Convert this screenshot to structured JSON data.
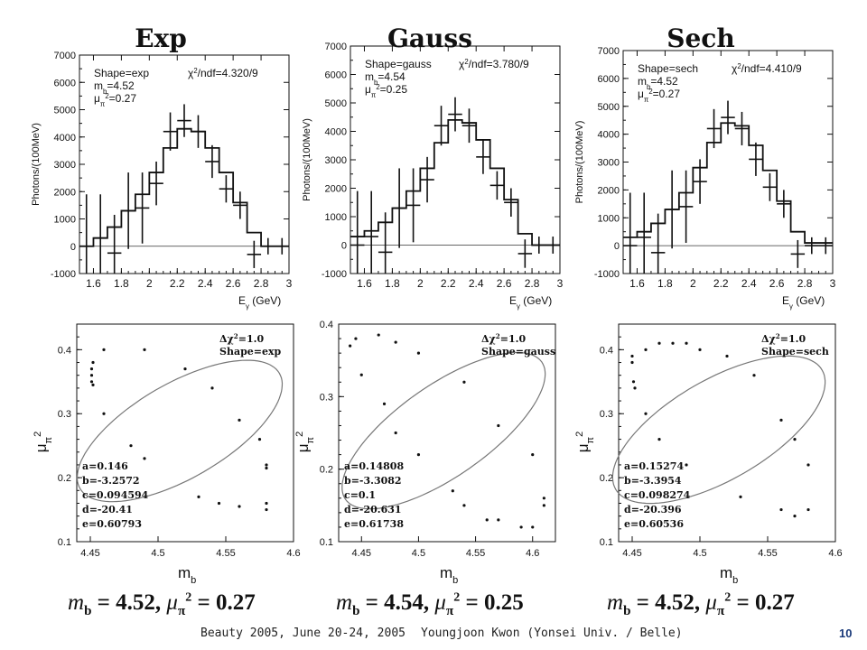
{
  "titles": [
    "Exp",
    "Gauss",
    "Sech"
  ],
  "summaries": [
    {
      "mb": "4.52",
      "mu2": "0.27"
    },
    {
      "mb": "4.54",
      "mu2": "0.25"
    },
    {
      "mb": "4.52",
      "mu2": "0.27"
    }
  ],
  "summary_labels": {
    "mb": "m",
    "mb_sub": "b",
    "mu": "μ",
    "mu_sub": "π",
    "mu_sup": "2"
  },
  "footer": {
    "conference": "Beauty 2005, June 20-24, 2005",
    "author": "Youngjoon Kwon (Yonsei Univ. / Belle)",
    "page": "10"
  },
  "chart_data": [
    {
      "type": "histogram",
      "panel": "Exp",
      "xlabel": "E_γ (GeV)",
      "ylabel": "Photons/(100MeV)",
      "xlim": [
        1.5,
        3.0
      ],
      "ylim": [
        -1000,
        7000
      ],
      "xticks": [
        1.6,
        1.8,
        2.0,
        2.2,
        2.4,
        2.6,
        2.8,
        3.0
      ],
      "yticks": [
        -1000,
        0,
        1000,
        2000,
        3000,
        4000,
        5000,
        6000,
        7000
      ],
      "annot": {
        "shape": "Shape=exp",
        "chi2": "χ²/ndf=4.320/9",
        "mb": "m_b=4.52",
        "mu": "μ_π²=0.27"
      },
      "fit": [
        {
          "x0": 1.5,
          "x1": 1.6,
          "y": 0
        },
        {
          "x0": 1.6,
          "x1": 1.7,
          "y": 300
        },
        {
          "x0": 1.7,
          "x1": 1.8,
          "y": 700
        },
        {
          "x0": 1.8,
          "x1": 1.9,
          "y": 1300
        },
        {
          "x0": 1.9,
          "x1": 2.0,
          "y": 1900
        },
        {
          "x0": 2.0,
          "x1": 2.1,
          "y": 2700
        },
        {
          "x0": 2.1,
          "x1": 2.2,
          "y": 3600
        },
        {
          "x0": 2.2,
          "x1": 2.3,
          "y": 4300
        },
        {
          "x0": 2.3,
          "x1": 2.4,
          "y": 4200
        },
        {
          "x0": 2.4,
          "x1": 2.5,
          "y": 3600
        },
        {
          "x0": 2.5,
          "x1": 2.6,
          "y": 2700
        },
        {
          "x0": 2.6,
          "x1": 2.7,
          "y": 1600
        },
        {
          "x0": 2.7,
          "x1": 2.8,
          "y": 500
        },
        {
          "x0": 2.8,
          "x1": 3.0,
          "y": 0
        }
      ],
      "points": [
        {
          "x": 1.55,
          "y": 0,
          "err": 1900
        },
        {
          "x": 1.65,
          "y": 300,
          "err": 1600
        },
        {
          "x": 1.75,
          "y": -250,
          "err": 1400
        },
        {
          "x": 1.85,
          "y": 1300,
          "err": 1400
        },
        {
          "x": 1.95,
          "y": 1400,
          "err": 1300
        },
        {
          "x": 2.05,
          "y": 2300,
          "err": 800
        },
        {
          "x": 2.15,
          "y": 4200,
          "err": 700
        },
        {
          "x": 2.25,
          "y": 4600,
          "err": 600
        },
        {
          "x": 2.35,
          "y": 4200,
          "err": 600
        },
        {
          "x": 2.45,
          "y": 3100,
          "err": 600
        },
        {
          "x": 2.55,
          "y": 2100,
          "err": 500
        },
        {
          "x": 2.65,
          "y": 1500,
          "err": 500
        },
        {
          "x": 2.75,
          "y": -300,
          "err": 500
        },
        {
          "x": 2.85,
          "y": 0,
          "err": 300
        },
        {
          "x": 2.95,
          "y": 0,
          "err": 300
        }
      ]
    },
    {
      "type": "histogram",
      "panel": "Gauss",
      "xlabel": "E_γ (GeV)",
      "ylabel": "Photons/(100MeV)",
      "xlim": [
        1.5,
        3.0
      ],
      "ylim": [
        -1000,
        7000
      ],
      "xticks": [
        1.6,
        1.8,
        2.0,
        2.2,
        2.4,
        2.6,
        2.8,
        3.0
      ],
      "yticks": [
        -1000,
        0,
        1000,
        2000,
        3000,
        4000,
        5000,
        6000,
        7000
      ],
      "annot": {
        "shape": "Shape=gauss",
        "chi2": "χ²/ndf=3.780/9",
        "mb": "m_b=4.54",
        "mu": "μ_π²=0.25"
      },
      "fit": [
        {
          "x0": 1.5,
          "x1": 1.6,
          "y": 300
        },
        {
          "x0": 1.6,
          "x1": 1.7,
          "y": 500
        },
        {
          "x0": 1.7,
          "x1": 1.8,
          "y": 800
        },
        {
          "x0": 1.8,
          "x1": 1.9,
          "y": 1300
        },
        {
          "x0": 1.9,
          "x1": 2.0,
          "y": 1900
        },
        {
          "x0": 2.0,
          "x1": 2.1,
          "y": 2700
        },
        {
          "x0": 2.1,
          "x1": 2.2,
          "y": 3600
        },
        {
          "x0": 2.2,
          "x1": 2.3,
          "y": 4400
        },
        {
          "x0": 2.3,
          "x1": 2.4,
          "y": 4300
        },
        {
          "x0": 2.4,
          "x1": 2.5,
          "y": 3700
        },
        {
          "x0": 2.5,
          "x1": 2.6,
          "y": 2700
        },
        {
          "x0": 2.6,
          "x1": 2.7,
          "y": 1600
        },
        {
          "x0": 2.7,
          "x1": 2.8,
          "y": 400
        },
        {
          "x0": 2.8,
          "x1": 3.0,
          "y": 0
        }
      ],
      "points": [
        {
          "x": 1.55,
          "y": 0,
          "err": 1900
        },
        {
          "x": 1.65,
          "y": 300,
          "err": 1600
        },
        {
          "x": 1.75,
          "y": -250,
          "err": 1400
        },
        {
          "x": 1.85,
          "y": 1300,
          "err": 1400
        },
        {
          "x": 1.95,
          "y": 1400,
          "err": 1300
        },
        {
          "x": 2.05,
          "y": 2300,
          "err": 800
        },
        {
          "x": 2.15,
          "y": 4200,
          "err": 700
        },
        {
          "x": 2.25,
          "y": 4600,
          "err": 600
        },
        {
          "x": 2.35,
          "y": 4200,
          "err": 600
        },
        {
          "x": 2.45,
          "y": 3100,
          "err": 600
        },
        {
          "x": 2.55,
          "y": 2100,
          "err": 500
        },
        {
          "x": 2.65,
          "y": 1500,
          "err": 500
        },
        {
          "x": 2.75,
          "y": -300,
          "err": 500
        },
        {
          "x": 2.85,
          "y": 0,
          "err": 300
        },
        {
          "x": 2.95,
          "y": 0,
          "err": 300
        }
      ]
    },
    {
      "type": "histogram",
      "panel": "Sech",
      "xlabel": "E_γ (GeV)",
      "ylabel": "Photons/(100MeV)",
      "xlim": [
        1.5,
        3.0
      ],
      "ylim": [
        -1000,
        7000
      ],
      "xticks": [
        1.6,
        1.8,
        2.0,
        2.2,
        2.4,
        2.6,
        2.8,
        3.0
      ],
      "yticks": [
        -1000,
        0,
        1000,
        2000,
        3000,
        4000,
        5000,
        6000,
        7000
      ],
      "annot": {
        "shape": "Shape=sech",
        "chi2": "χ²/ndf=4.410/9",
        "mb": "m_b=4.52",
        "mu": "μ_π²=0.27"
      },
      "fit": [
        {
          "x0": 1.5,
          "x1": 1.6,
          "y": 300
        },
        {
          "x0": 1.6,
          "x1": 1.7,
          "y": 500
        },
        {
          "x0": 1.7,
          "x1": 1.8,
          "y": 800
        },
        {
          "x0": 1.8,
          "x1": 1.9,
          "y": 1300
        },
        {
          "x0": 1.9,
          "x1": 2.0,
          "y": 1900
        },
        {
          "x0": 2.0,
          "x1": 2.1,
          "y": 2800
        },
        {
          "x0": 2.1,
          "x1": 2.2,
          "y": 3700
        },
        {
          "x0": 2.2,
          "x1": 2.3,
          "y": 4400
        },
        {
          "x0": 2.3,
          "x1": 2.4,
          "y": 4300
        },
        {
          "x0": 2.4,
          "x1": 2.5,
          "y": 3600
        },
        {
          "x0": 2.5,
          "x1": 2.6,
          "y": 2700
        },
        {
          "x0": 2.6,
          "x1": 2.7,
          "y": 1600
        },
        {
          "x0": 2.7,
          "x1": 2.8,
          "y": 500
        },
        {
          "x0": 2.8,
          "x1": 3.0,
          "y": 100
        }
      ],
      "points": [
        {
          "x": 1.55,
          "y": 0,
          "err": 1900
        },
        {
          "x": 1.65,
          "y": 300,
          "err": 1600
        },
        {
          "x": 1.75,
          "y": -250,
          "err": 1400
        },
        {
          "x": 1.85,
          "y": 1300,
          "err": 1400
        },
        {
          "x": 1.95,
          "y": 1400,
          "err": 1300
        },
        {
          "x": 2.05,
          "y": 2300,
          "err": 800
        },
        {
          "x": 2.15,
          "y": 4200,
          "err": 700
        },
        {
          "x": 2.25,
          "y": 4600,
          "err": 600
        },
        {
          "x": 2.35,
          "y": 4200,
          "err": 600
        },
        {
          "x": 2.45,
          "y": 3100,
          "err": 600
        },
        {
          "x": 2.55,
          "y": 2100,
          "err": 500
        },
        {
          "x": 2.65,
          "y": 1500,
          "err": 500
        },
        {
          "x": 2.75,
          "y": -300,
          "err": 500
        },
        {
          "x": 2.85,
          "y": 0,
          "err": 300
        },
        {
          "x": 2.95,
          "y": 0,
          "err": 300
        }
      ]
    },
    {
      "type": "scatter",
      "panel": "Exp",
      "xlabel": "m_b",
      "ylabel": "μ_π²",
      "xlim": [
        4.44,
        4.6
      ],
      "ylim": [
        0.1,
        0.44
      ],
      "xticks": [
        4.45,
        4.5,
        4.55,
        4.6
      ],
      "yticks": [
        0.1,
        0.2,
        0.3,
        0.4
      ],
      "annot_top": [
        "Δχ²=1.0",
        "Shape=exp"
      ],
      "params": [
        "a=0.146",
        "b=-3.2572",
        "c=0.094594",
        "d=-20.41",
        "e=0.60793"
      ],
      "ellipse": {
        "cx": 4.516,
        "cy": 0.273,
        "angle_deg": 150,
        "rx": 0.085,
        "ry": 0.035
      },
      "points": [
        {
          "x": 4.452,
          "y": 0.38
        },
        {
          "x": 4.451,
          "y": 0.37
        },
        {
          "x": 4.451,
          "y": 0.36
        },
        {
          "x": 4.451,
          "y": 0.35
        },
        {
          "x": 4.452,
          "y": 0.345
        },
        {
          "x": 4.46,
          "y": 0.4
        },
        {
          "x": 4.49,
          "y": 0.4
        },
        {
          "x": 4.52,
          "y": 0.37
        },
        {
          "x": 4.54,
          "y": 0.34
        },
        {
          "x": 4.56,
          "y": 0.29
        },
        {
          "x": 4.575,
          "y": 0.26
        },
        {
          "x": 4.58,
          "y": 0.22
        },
        {
          "x": 4.58,
          "y": 0.215
        },
        {
          "x": 4.58,
          "y": 0.16
        },
        {
          "x": 4.58,
          "y": 0.15
        },
        {
          "x": 4.56,
          "y": 0.155
        },
        {
          "x": 4.545,
          "y": 0.16
        },
        {
          "x": 4.53,
          "y": 0.17
        },
        {
          "x": 4.49,
          "y": 0.23
        },
        {
          "x": 4.48,
          "y": 0.25
        },
        {
          "x": 4.46,
          "y": 0.3
        }
      ]
    },
    {
      "type": "scatter",
      "panel": "Gauss",
      "xlabel": "m_b",
      "ylabel": "μ_π²",
      "xlim": [
        4.43,
        4.62
      ],
      "ylim": [
        0.1,
        0.4
      ],
      "xticks": [
        4.45,
        4.5,
        4.55,
        4.6
      ],
      "yticks": [
        0.1,
        0.2,
        0.3,
        0.4
      ],
      "annot_top": [
        "Δχ²=1.0",
        "Shape=gauss"
      ],
      "params": [
        "a=0.14808",
        "b=-3.3082",
        "c=0.1",
        "d=-20.631",
        "e=0.61738"
      ],
      "ellipse": {
        "cx": 4.522,
        "cy": 0.253,
        "angle_deg": 145,
        "rx": 0.105,
        "ry": 0.04
      },
      "points": [
        {
          "x": 4.44,
          "y": 0.37
        },
        {
          "x": 4.445,
          "y": 0.38
        },
        {
          "x": 4.465,
          "y": 0.385
        },
        {
          "x": 4.48,
          "y": 0.375
        },
        {
          "x": 4.5,
          "y": 0.36
        },
        {
          "x": 4.54,
          "y": 0.32
        },
        {
          "x": 4.57,
          "y": 0.26
        },
        {
          "x": 4.6,
          "y": 0.22
        },
        {
          "x": 4.61,
          "y": 0.16
        },
        {
          "x": 4.61,
          "y": 0.15
        },
        {
          "x": 4.6,
          "y": 0.12
        },
        {
          "x": 4.59,
          "y": 0.12
        },
        {
          "x": 4.57,
          "y": 0.13
        },
        {
          "x": 4.56,
          "y": 0.13
        },
        {
          "x": 4.54,
          "y": 0.15
        },
        {
          "x": 4.53,
          "y": 0.17
        },
        {
          "x": 4.5,
          "y": 0.22
        },
        {
          "x": 4.48,
          "y": 0.25
        },
        {
          "x": 4.47,
          "y": 0.29
        },
        {
          "x": 4.45,
          "y": 0.33
        }
      ]
    },
    {
      "type": "scatter",
      "panel": "Sech",
      "xlabel": "m_b",
      "ylabel": "μ_π²",
      "xlim": [
        4.44,
        4.6
      ],
      "ylim": [
        0.1,
        0.44
      ],
      "xticks": [
        4.45,
        4.5,
        4.55,
        4.6
      ],
      "yticks": [
        0.1,
        0.2,
        0.3,
        0.4
      ],
      "annot_top": [
        "Δχ²=1.0",
        "Shape=sech"
      ],
      "params": [
        "a=0.15274",
        "b=-3.3954",
        "c=0.098274",
        "d=-20.396",
        "e=0.60536"
      ],
      "ellipse": {
        "cx": 4.514,
        "cy": 0.275,
        "angle_deg": 150,
        "rx": 0.088,
        "ry": 0.037
      },
      "points": [
        {
          "x": 4.45,
          "y": 0.38
        },
        {
          "x": 4.45,
          "y": 0.39
        },
        {
          "x": 4.451,
          "y": 0.35
        },
        {
          "x": 4.452,
          "y": 0.34
        },
        {
          "x": 4.46,
          "y": 0.4
        },
        {
          "x": 4.47,
          "y": 0.41
        },
        {
          "x": 4.48,
          "y": 0.41
        },
        {
          "x": 4.49,
          "y": 0.41
        },
        {
          "x": 4.5,
          "y": 0.4
        },
        {
          "x": 4.52,
          "y": 0.39
        },
        {
          "x": 4.54,
          "y": 0.36
        },
        {
          "x": 4.56,
          "y": 0.29
        },
        {
          "x": 4.57,
          "y": 0.26
        },
        {
          "x": 4.58,
          "y": 0.22
        },
        {
          "x": 4.58,
          "y": 0.15
        },
        {
          "x": 4.57,
          "y": 0.14
        },
        {
          "x": 4.56,
          "y": 0.15
        },
        {
          "x": 4.53,
          "y": 0.17
        },
        {
          "x": 4.49,
          "y": 0.22
        },
        {
          "x": 4.47,
          "y": 0.26
        },
        {
          "x": 4.46,
          "y": 0.3
        }
      ]
    }
  ]
}
